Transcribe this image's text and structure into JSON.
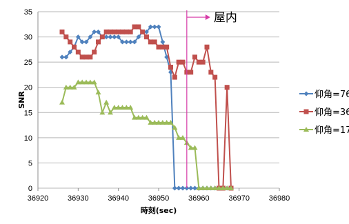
{
  "chart_data": {
    "type": "line",
    "xlabel": "時刻(sec)",
    "ylabel": "SNR",
    "xlim": [
      36920,
      36980
    ],
    "ylim": [
      0,
      35
    ],
    "xticks": [
      36920,
      36930,
      36940,
      36950,
      36960,
      36970,
      36980
    ],
    "yticks": [
      0,
      5,
      10,
      15,
      20,
      25,
      30,
      35
    ],
    "grid": "horizontal",
    "legend_position": "right",
    "annotation": {
      "label": "屋内",
      "x": 36957
    },
    "colors": {
      "vline": "#d63aa7"
    },
    "series": [
      {
        "name": "仰角=76",
        "color": "#4f81bd",
        "marker": "diamond",
        "x": [
          36926,
          36927,
          36928,
          36929,
          36930,
          36931,
          36932,
          36933,
          36934,
          36935,
          36936,
          36937,
          36938,
          36939,
          36940,
          36941,
          36942,
          36943,
          36944,
          36945,
          36946,
          36947,
          36948,
          36949,
          36950,
          36951,
          36952,
          36953,
          36954,
          36955,
          36956,
          36957,
          36958,
          36959,
          36960,
          36961,
          36962,
          36963,
          36964,
          36965,
          36966,
          36967,
          36968
        ],
        "y": [
          26,
          26,
          27,
          28,
          30,
          29,
          29,
          30,
          31,
          31,
          30,
          30,
          30,
          30,
          30,
          29,
          29,
          29,
          29,
          30,
          31,
          31,
          32,
          32,
          32,
          29,
          26,
          23,
          0,
          0,
          0,
          0,
          0,
          0,
          0,
          0,
          0,
          0,
          0,
          0,
          0,
          0,
          0
        ]
      },
      {
        "name": "仰角=36",
        "color": "#c0504d",
        "marker": "square",
        "x": [
          36926,
          36927,
          36928,
          36929,
          36930,
          36931,
          36932,
          36933,
          36934,
          36935,
          36936,
          36937,
          36938,
          36939,
          36940,
          36941,
          36942,
          36943,
          36944,
          36945,
          36946,
          36947,
          36948,
          36949,
          36950,
          36951,
          36952,
          36953,
          36954,
          36955,
          36956,
          36957,
          36958,
          36959,
          36960,
          36961,
          36962,
          36963,
          36964,
          36965,
          36966,
          36967,
          36968
        ],
        "y": [
          31,
          30,
          29,
          28,
          27,
          26,
          26,
          26,
          27,
          29,
          30,
          31,
          31,
          31,
          31,
          31,
          31,
          31,
          32,
          32,
          31,
          30,
          29,
          29,
          28,
          28,
          28,
          24,
          22,
          25,
          25,
          23,
          23,
          26,
          25,
          25,
          28,
          23,
          22,
          0,
          0,
          20,
          0
        ]
      },
      {
        "name": "仰角=17",
        "color": "#9bbb59",
        "marker": "triangle",
        "x": [
          36926,
          36927,
          36928,
          36929,
          36930,
          36931,
          36932,
          36933,
          36934,
          36935,
          36936,
          36937,
          36938,
          36939,
          36940,
          36941,
          36942,
          36943,
          36944,
          36945,
          36946,
          36947,
          36948,
          36949,
          36950,
          36951,
          36952,
          36953,
          36954,
          36955,
          36956,
          36957,
          36958,
          36959,
          36960,
          36961,
          36962,
          36963,
          36964,
          36965,
          36966,
          36967,
          36968
        ],
        "y": [
          17,
          20,
          20,
          20,
          21,
          21,
          21,
          21,
          21,
          19,
          15,
          17,
          15,
          16,
          16,
          16,
          16,
          16,
          14,
          14,
          14,
          14,
          13,
          13,
          13,
          13,
          13,
          13,
          12,
          10,
          10,
          9,
          8,
          8,
          0,
          0,
          0,
          0,
          0,
          0,
          0,
          0,
          0
        ]
      }
    ]
  }
}
